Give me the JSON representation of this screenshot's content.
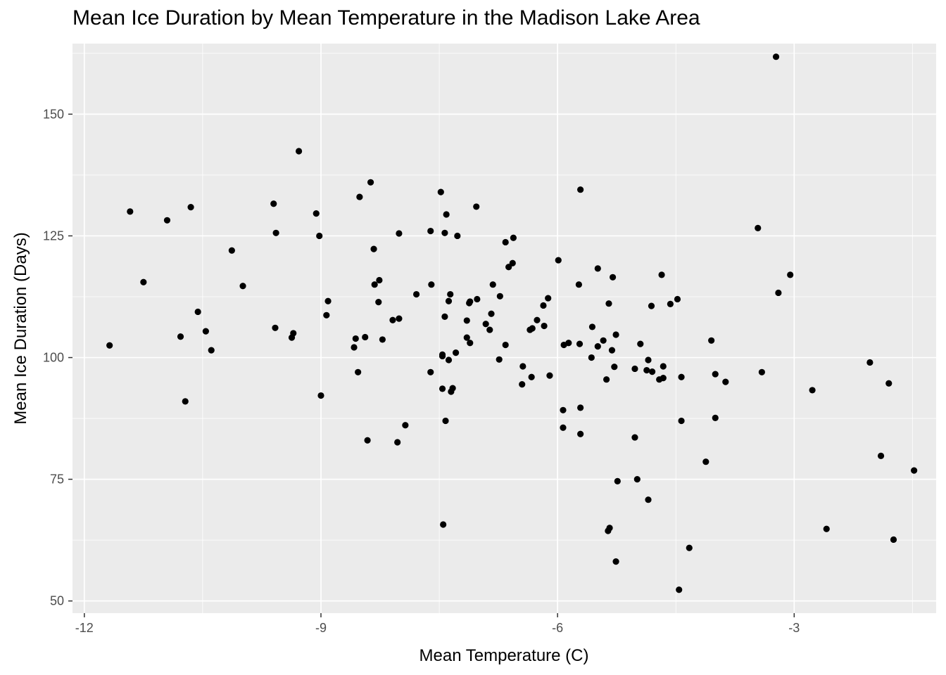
{
  "chart_data": {
    "type": "scatter",
    "title": "Mean Ice Duration by Mean Temperature in the Madison Lake Area",
    "xlabel": "Mean Temperature (C)",
    "ylabel": "Mean Ice Duration (Days)",
    "xlim": [
      -12.15,
      -1.2
    ],
    "ylim": [
      47.5,
      164.5
    ],
    "x_ticks": [
      -12,
      -9,
      -6,
      -3
    ],
    "x_tick_labels": [
      "-12",
      "-9",
      "-6",
      "-3"
    ],
    "y_ticks": [
      50,
      75,
      100,
      125,
      150
    ],
    "y_tick_labels": [
      "50",
      "75",
      "100",
      "125",
      "150"
    ],
    "grid": true,
    "panel_color": "#EBEBEB",
    "grid_color": "#FFFFFF",
    "point_color": "#000000",
    "points": [
      [
        -11.68,
        102.5
      ],
      [
        -11.42,
        130.0
      ],
      [
        -11.25,
        115.5
      ],
      [
        -10.95,
        128.2
      ],
      [
        -10.78,
        104.3
      ],
      [
        -10.72,
        91.0
      ],
      [
        -10.65,
        130.9
      ],
      [
        -10.56,
        109.4
      ],
      [
        -10.46,
        105.4
      ],
      [
        -10.39,
        101.5
      ],
      [
        -10.13,
        122.0
      ],
      [
        -9.99,
        114.7
      ],
      [
        -9.6,
        131.6
      ],
      [
        -9.57,
        125.6
      ],
      [
        -9.58,
        106.1
      ],
      [
        -9.37,
        104.1
      ],
      [
        -9.35,
        105.0
      ],
      [
        -9.28,
        142.4
      ],
      [
        -9.06,
        129.6
      ],
      [
        -9.02,
        125.0
      ],
      [
        -9.0,
        92.2
      ],
      [
        -8.93,
        108.7
      ],
      [
        -8.91,
        111.6
      ],
      [
        -8.58,
        102.1
      ],
      [
        -8.56,
        103.9
      ],
      [
        -8.53,
        97.0
      ],
      [
        -8.51,
        133.0
      ],
      [
        -8.44,
        104.2
      ],
      [
        -8.41,
        83.0
      ],
      [
        -8.37,
        136.0
      ],
      [
        -8.33,
        122.3
      ],
      [
        -8.32,
        115.0
      ],
      [
        -8.27,
        111.4
      ],
      [
        -8.26,
        115.9
      ],
      [
        -8.22,
        103.7
      ],
      [
        -8.09,
        107.7
      ],
      [
        -8.03,
        82.6
      ],
      [
        -8.01,
        125.5
      ],
      [
        -8.01,
        108.0
      ],
      [
        -7.93,
        86.1
      ],
      [
        -7.79,
        113.0
      ],
      [
        -7.6,
        115.0
      ],
      [
        -7.61,
        126.0
      ],
      [
        -7.61,
        97.0
      ],
      [
        -7.48,
        134.0
      ],
      [
        -7.46,
        100.6
      ],
      [
        -7.46,
        100.3
      ],
      [
        -7.46,
        93.6
      ],
      [
        -7.45,
        65.7
      ],
      [
        -7.43,
        108.4
      ],
      [
        -7.43,
        125.6
      ],
      [
        -7.42,
        87.0
      ],
      [
        -7.41,
        129.4
      ],
      [
        -7.38,
        111.6
      ],
      [
        -7.38,
        99.5
      ],
      [
        -7.36,
        113.0
      ],
      [
        -7.35,
        93.0
      ],
      [
        -7.33,
        93.7
      ],
      [
        -7.29,
        101.0
      ],
      [
        -7.27,
        125.0
      ],
      [
        -7.15,
        107.6
      ],
      [
        -7.15,
        104.1
      ],
      [
        -7.12,
        111.2
      ],
      [
        -7.11,
        103.0
      ],
      [
        -7.11,
        111.5
      ],
      [
        -7.03,
        131.0
      ],
      [
        -7.02,
        112.0
      ],
      [
        -6.91,
        106.9
      ],
      [
        -6.86,
        105.7
      ],
      [
        -6.84,
        109.0
      ],
      [
        -6.82,
        115.0
      ],
      [
        -6.74,
        99.6
      ],
      [
        -6.73,
        112.6
      ],
      [
        -6.66,
        123.7
      ],
      [
        -6.66,
        102.6
      ],
      [
        -6.62,
        118.6
      ],
      [
        -6.57,
        119.4
      ],
      [
        -6.56,
        124.6
      ],
      [
        -6.45,
        94.5
      ],
      [
        -6.44,
        98.2
      ],
      [
        -6.35,
        105.7
      ],
      [
        -6.33,
        96.0
      ],
      [
        -6.32,
        106.0
      ],
      [
        -6.26,
        107.7
      ],
      [
        -6.18,
        110.7
      ],
      [
        -6.17,
        106.5
      ],
      [
        -6.12,
        112.2
      ],
      [
        -6.1,
        96.3
      ],
      [
        -5.99,
        120.0
      ],
      [
        -5.93,
        89.2
      ],
      [
        -5.93,
        85.6
      ],
      [
        -5.92,
        102.6
      ],
      [
        -5.86,
        103.0
      ],
      [
        -5.71,
        134.5
      ],
      [
        -5.73,
        115.0
      ],
      [
        -5.72,
        102.8
      ],
      [
        -5.71,
        89.7
      ],
      [
        -5.71,
        84.3
      ],
      [
        -5.57,
        100.0
      ],
      [
        -5.56,
        106.3
      ],
      [
        -5.49,
        118.3
      ],
      [
        -5.49,
        102.3
      ],
      [
        -5.42,
        103.5
      ],
      [
        -5.38,
        95.5
      ],
      [
        -5.35,
        111.1
      ],
      [
        -5.36,
        64.4
      ],
      [
        -5.34,
        65.0
      ],
      [
        -5.31,
        101.5
      ],
      [
        -5.3,
        116.5
      ],
      [
        -5.28,
        98.1
      ],
      [
        -5.26,
        104.7
      ],
      [
        -5.26,
        58.1
      ],
      [
        -5.24,
        74.6
      ],
      [
        -5.02,
        83.6
      ],
      [
        -5.02,
        97.7
      ],
      [
        -4.99,
        75.0
      ],
      [
        -4.95,
        102.8
      ],
      [
        -4.87,
        97.4
      ],
      [
        -4.85,
        99.5
      ],
      [
        -4.85,
        70.8
      ],
      [
        -4.81,
        110.6
      ],
      [
        -4.8,
        97.1
      ],
      [
        -4.71,
        95.5
      ],
      [
        -4.68,
        117.0
      ],
      [
        -4.66,
        95.8
      ],
      [
        -4.66,
        98.2
      ],
      [
        -4.57,
        111.0
      ],
      [
        -4.48,
        112.0
      ],
      [
        -4.46,
        52.3
      ],
      [
        -4.43,
        96.0
      ],
      [
        -4.43,
        87.0
      ],
      [
        -4.33,
        60.9
      ],
      [
        -4.12,
        78.6
      ],
      [
        -4.05,
        103.5
      ],
      [
        -4.0,
        96.6
      ],
      [
        -4.0,
        87.6
      ],
      [
        -3.87,
        95.0
      ],
      [
        -3.46,
        126.6
      ],
      [
        -3.41,
        97.0
      ],
      [
        -3.23,
        161.8
      ],
      [
        -3.2,
        113.3
      ],
      [
        -3.05,
        117.0
      ],
      [
        -2.77,
        93.3
      ],
      [
        -2.59,
        64.8
      ],
      [
        -2.04,
        99.0
      ],
      [
        -1.9,
        79.8
      ],
      [
        -1.8,
        94.7
      ],
      [
        -1.74,
        62.6
      ],
      [
        -1.48,
        76.8
      ]
    ]
  }
}
